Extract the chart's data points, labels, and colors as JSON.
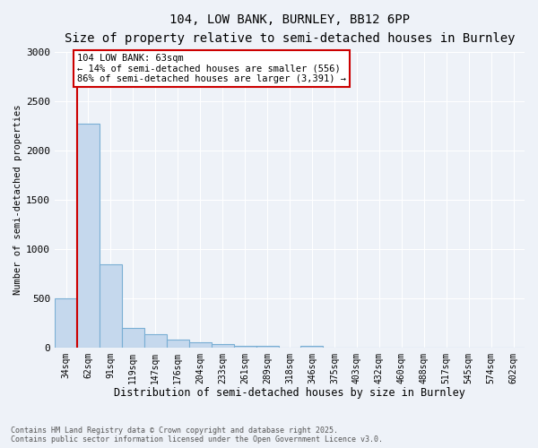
{
  "title": "104, LOW BANK, BURNLEY, BB12 6PP",
  "subtitle": "Size of property relative to semi-detached houses in Burnley",
  "xlabel": "Distribution of semi-detached houses by size in Burnley",
  "ylabel": "Number of semi-detached properties",
  "categories": [
    "34sqm",
    "62sqm",
    "91sqm",
    "119sqm",
    "147sqm",
    "176sqm",
    "204sqm",
    "233sqm",
    "261sqm",
    "289sqm",
    "318sqm",
    "346sqm",
    "375sqm",
    "403sqm",
    "432sqm",
    "460sqm",
    "488sqm",
    "517sqm",
    "545sqm",
    "574sqm",
    "602sqm"
  ],
  "values": [
    500,
    2270,
    840,
    200,
    130,
    80,
    55,
    30,
    20,
    20,
    0,
    20,
    0,
    0,
    0,
    0,
    0,
    0,
    0,
    0,
    0
  ],
  "bar_color": "#c5d8ed",
  "bar_edge_color": "#7aafd4",
  "annotation_text_line1": "104 LOW BANK: 63sqm",
  "annotation_text_line2": "← 14% of semi-detached houses are smaller (556)",
  "annotation_text_line3": "86% of semi-detached houses are larger (3,391) →",
  "marker_color": "#cc0000",
  "ylim": [
    0,
    3000
  ],
  "yticks": [
    0,
    500,
    1000,
    1500,
    2000,
    2500,
    3000
  ],
  "footer_line1": "Contains HM Land Registry data © Crown copyright and database right 2025.",
  "footer_line2": "Contains public sector information licensed under the Open Government Licence v3.0.",
  "background_color": "#eef2f8",
  "grid_color": "#ffffff",
  "annotation_box_color": "#ffffff",
  "annotation_box_edge": "#cc0000"
}
